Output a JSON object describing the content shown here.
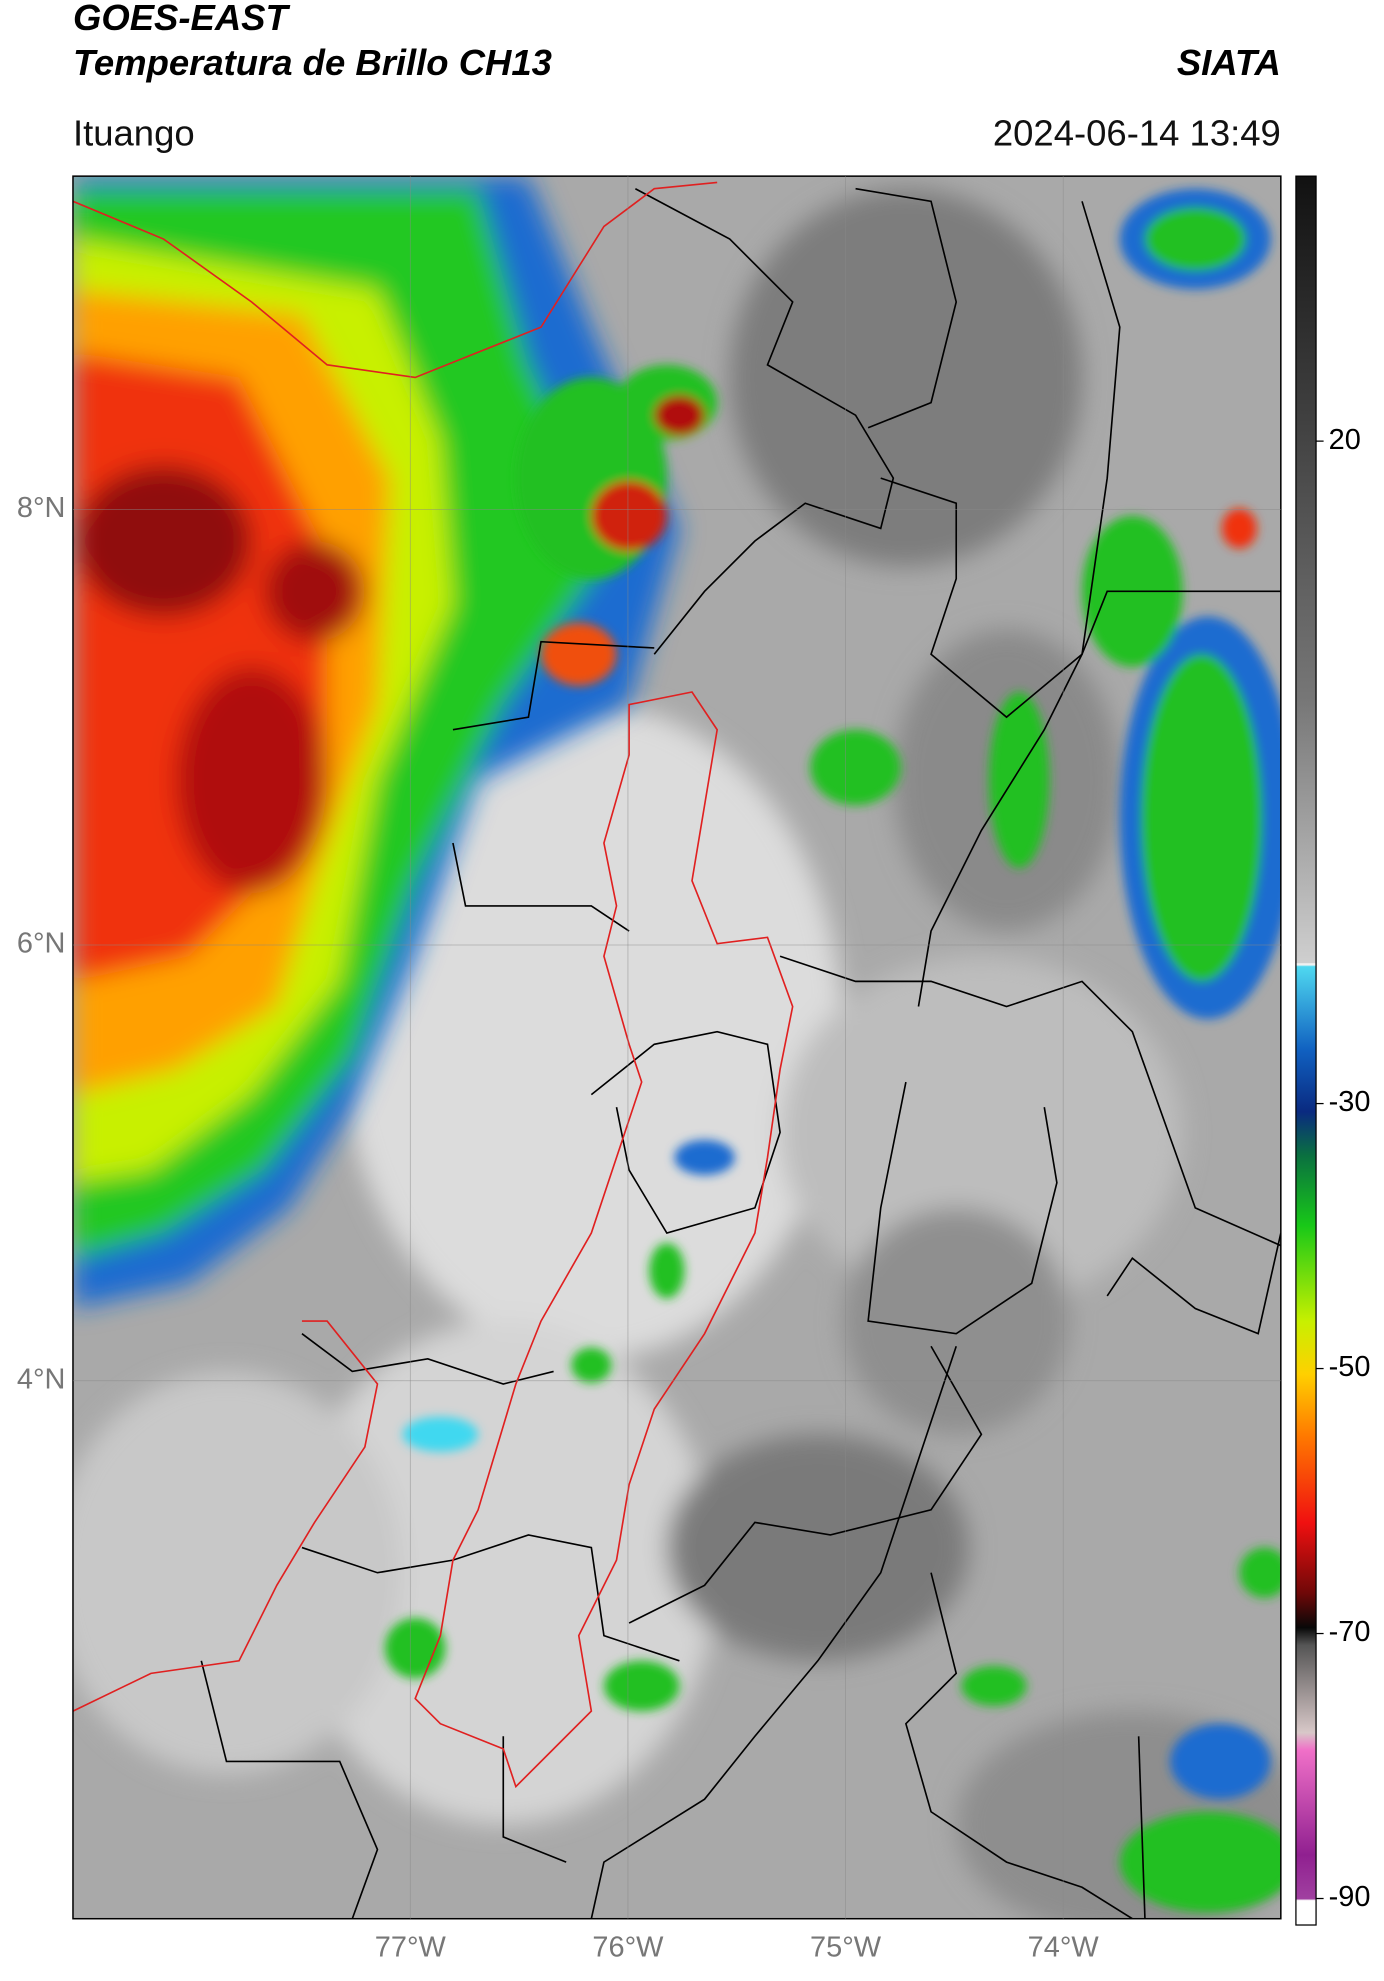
{
  "header": {
    "title": "GOES-EAST",
    "subtitle": "Temperatura de Brillo CH13",
    "brand": "SIATA",
    "location": "Ituango",
    "timestamp": "2024-06-14 13:49"
  },
  "map": {
    "xlim": [
      -78.55,
      -73.0
    ],
    "ylim": [
      1.53,
      9.53
    ],
    "xticks": [
      {
        "value": -77,
        "label": "77°W"
      },
      {
        "value": -76,
        "label": "76°W"
      },
      {
        "value": -75,
        "label": "75°W"
      },
      {
        "value": -74,
        "label": "74°W"
      }
    ],
    "yticks": [
      {
        "value": 8,
        "label": "8°N"
      },
      {
        "value": 6,
        "label": "6°N"
      },
      {
        "value": 4,
        "label": "4°N"
      }
    ]
  },
  "colorbar": {
    "lim": [
      -92,
      40
    ],
    "ticks": [
      20,
      -30,
      -50,
      -70,
      -90
    ]
  }
}
